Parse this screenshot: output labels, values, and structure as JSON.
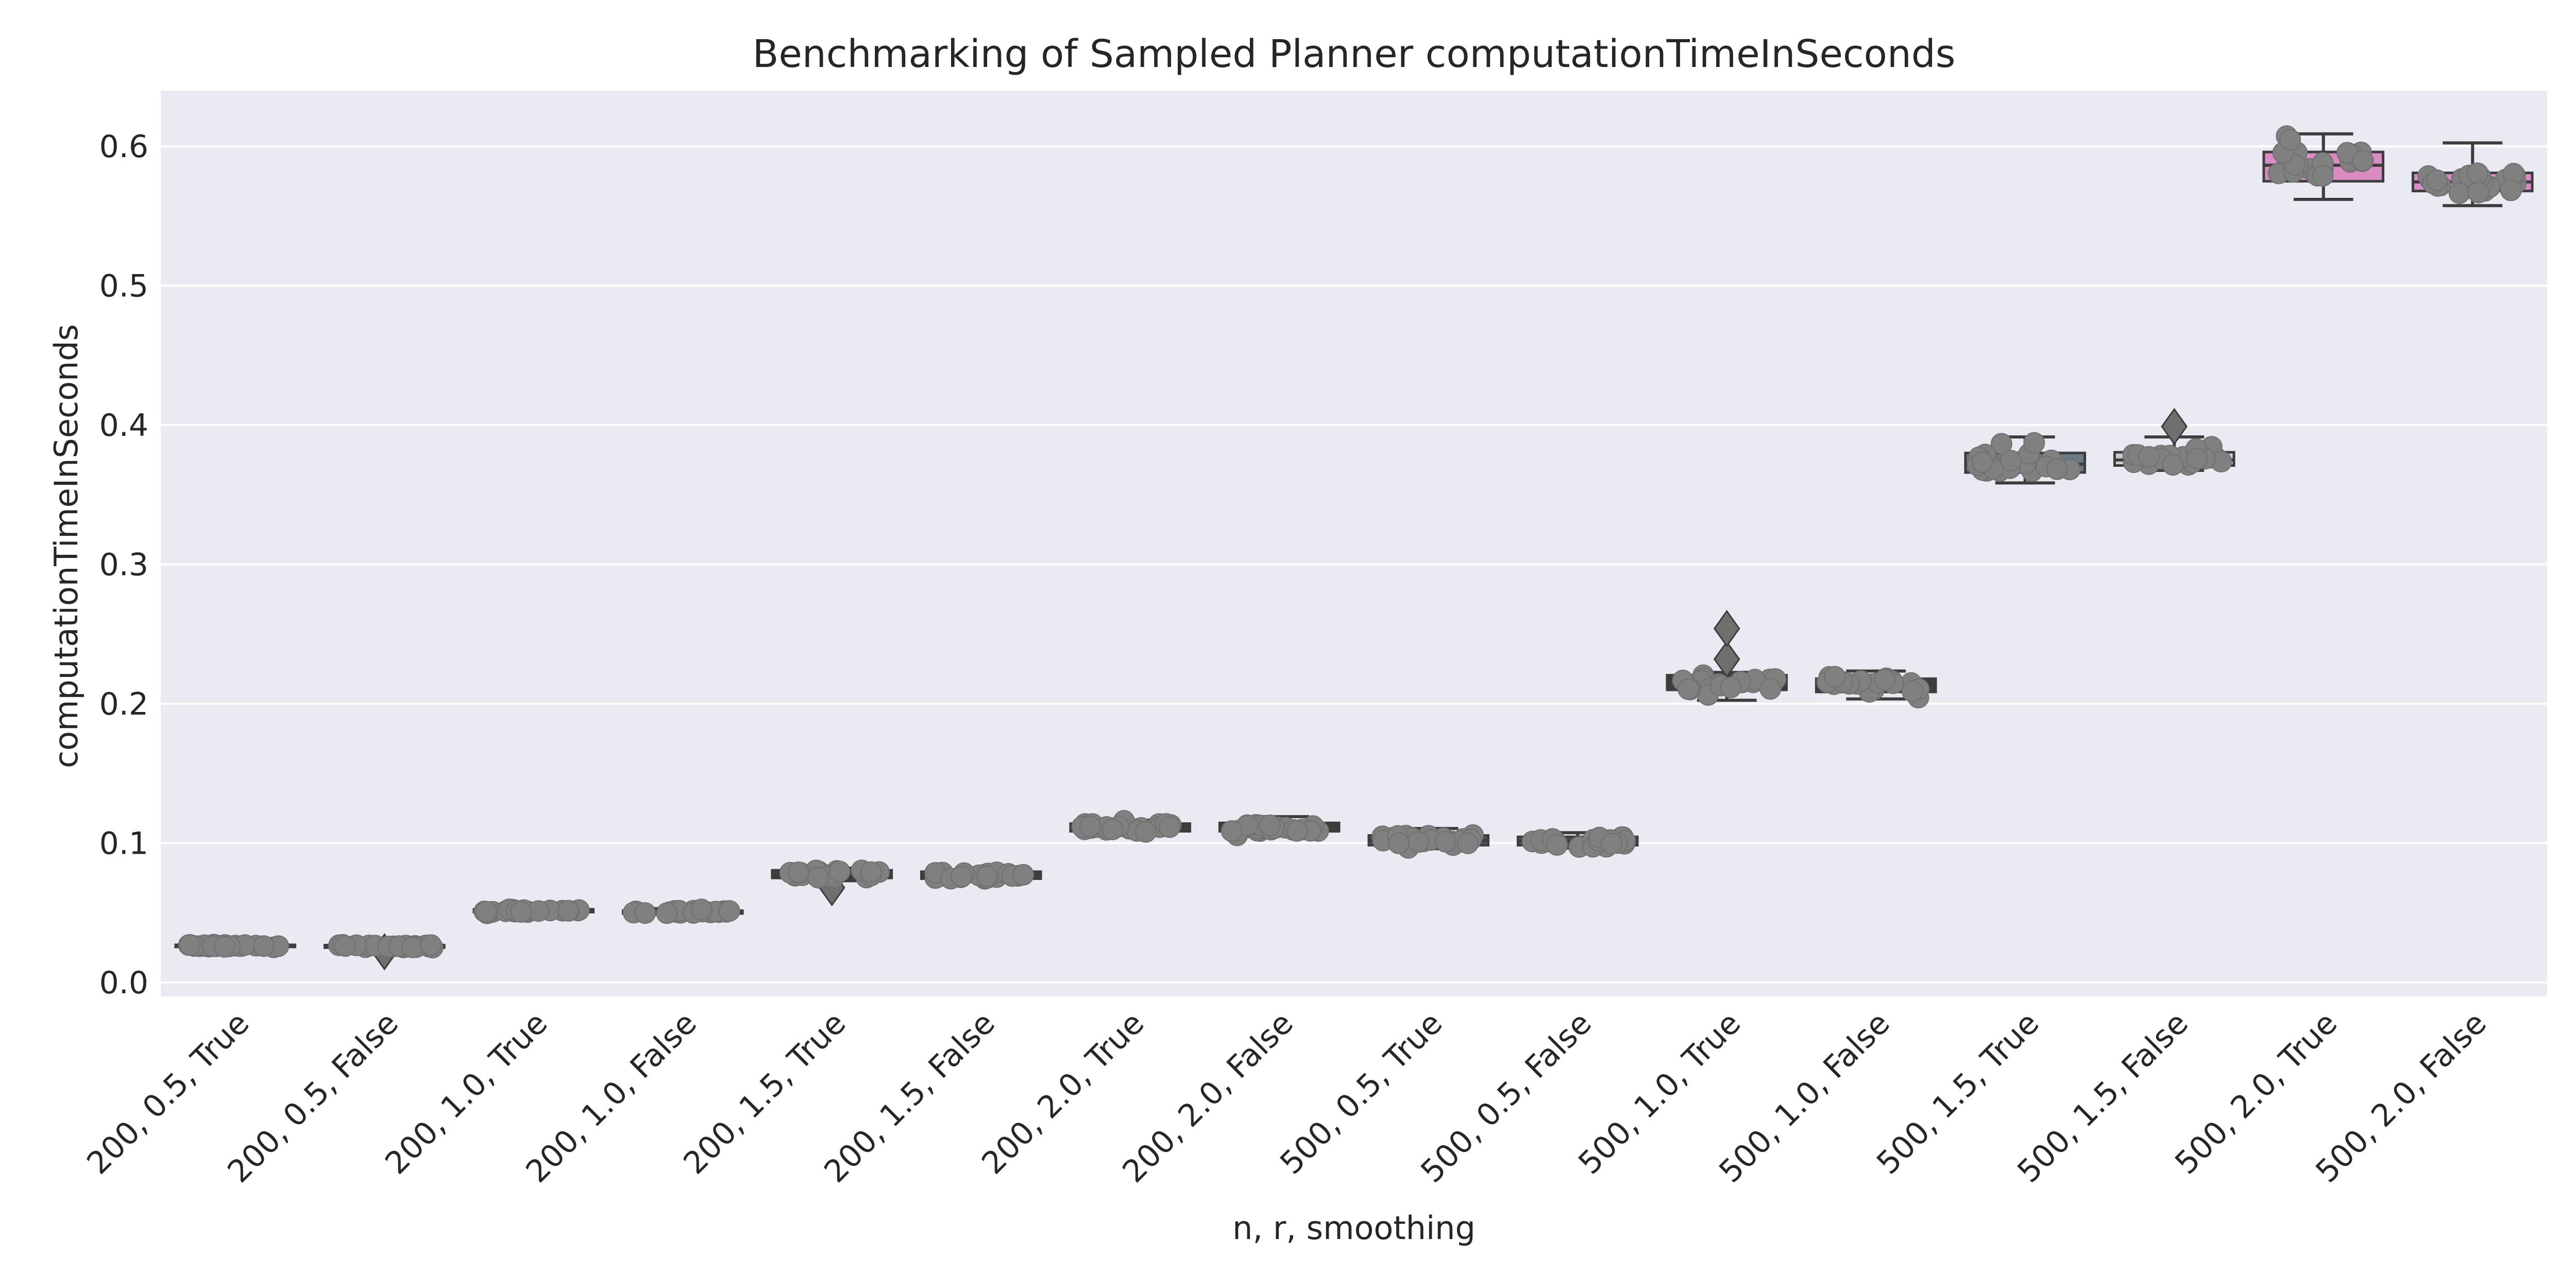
{
  "chart_data": {
    "type": "box",
    "title": "Benchmarking of Sampled Planner computationTimeInSeconds",
    "xlabel": "n, r, smoothing",
    "ylabel": "computationTimeInSeconds",
    "ylim": [
      -0.01,
      0.64
    ],
    "yticks": [
      0.0,
      0.1,
      0.2,
      0.3,
      0.4,
      0.5,
      0.6
    ],
    "ytick_labels": [
      "0.0",
      "0.1",
      "0.2",
      "0.3",
      "0.4",
      "0.5",
      "0.6"
    ],
    "grid": true,
    "categories": [
      "200, 0.5, True",
      "200, 0.5, False",
      "200, 1.0, True",
      "200, 1.0, False",
      "200, 1.5, True",
      "200, 1.5, False",
      "200, 2.0, True",
      "200, 2.0, False",
      "500, 0.5, True",
      "500, 0.5, False",
      "500, 1.0, True",
      "500, 1.0, False",
      "500, 1.5, True",
      "500, 1.5, False",
      "500, 2.0, True",
      "500, 2.0, False"
    ],
    "boxes": [
      {
        "q1": 0.0255,
        "median": 0.0262,
        "q3": 0.027,
        "whisker_low": 0.025,
        "whisker_high": 0.028,
        "outliers": []
      },
      {
        "q1": 0.025,
        "median": 0.026,
        "q3": 0.0268,
        "whisker_low": 0.0245,
        "whisker_high": 0.0275,
        "outliers": [
          0.022
        ]
      },
      {
        "q1": 0.0505,
        "median": 0.0515,
        "q3": 0.0525,
        "whisker_low": 0.0495,
        "whisker_high": 0.054,
        "outliers": []
      },
      {
        "q1": 0.0495,
        "median": 0.0505,
        "q3": 0.0515,
        "whisker_low": 0.049,
        "whisker_high": 0.053,
        "outliers": []
      },
      {
        "q1": 0.075,
        "median": 0.077,
        "q3": 0.0805,
        "whisker_low": 0.073,
        "whisker_high": 0.082,
        "outliers": [
          0.068
        ]
      },
      {
        "q1": 0.0745,
        "median": 0.0765,
        "q3": 0.0795,
        "whisker_low": 0.0725,
        "whisker_high": 0.081,
        "outliers": []
      },
      {
        "q1": 0.1085,
        "median": 0.111,
        "q3": 0.114,
        "whisker_low": 0.106,
        "whisker_high": 0.1165,
        "outliers": []
      },
      {
        "q1": 0.1085,
        "median": 0.111,
        "q3": 0.1145,
        "whisker_low": 0.1055,
        "whisker_high": 0.119,
        "outliers": []
      },
      {
        "q1": 0.0985,
        "median": 0.102,
        "q3": 0.1055,
        "whisker_low": 0.096,
        "whisker_high": 0.1105,
        "outliers": []
      },
      {
        "q1": 0.0985,
        "median": 0.1015,
        "q3": 0.1045,
        "whisker_low": 0.0965,
        "whisker_high": 0.1075,
        "outliers": []
      },
      {
        "q1": 0.21,
        "median": 0.2135,
        "q3": 0.2205,
        "whisker_low": 0.2025,
        "whisker_high": 0.2225,
        "outliers": [
          0.232,
          0.254
        ]
      },
      {
        "q1": 0.2085,
        "median": 0.2135,
        "q3": 0.218,
        "whisker_low": 0.2035,
        "whisker_high": 0.2235,
        "outliers": []
      },
      {
        "q1": 0.366,
        "median": 0.372,
        "q3": 0.38,
        "whisker_low": 0.3585,
        "whisker_high": 0.3915,
        "outliers": []
      },
      {
        "q1": 0.371,
        "median": 0.375,
        "q3": 0.3805,
        "whisker_low": 0.3675,
        "whisker_high": 0.3915,
        "outliers": [
          0.399
        ]
      },
      {
        "q1": 0.575,
        "median": 0.5865,
        "q3": 0.596,
        "whisker_low": 0.562,
        "whisker_high": 0.609,
        "outliers": []
      },
      {
        "q1": 0.568,
        "median": 0.5745,
        "q3": 0.581,
        "whisker_low": 0.5575,
        "whisker_high": 0.6025,
        "outliers": []
      }
    ],
    "box_colors": [
      "#3d3d3d",
      "#3d3d3d",
      "#3d3d3d",
      "#3d3d3d",
      "#3d3d3d",
      "#3d3d3d",
      "#3d3d3d",
      "#3d3d3d",
      "#4a5560",
      "#4a5560",
      "#3d3d3d",
      "#3d3d3d",
      "#6c7a86",
      "#c9ced3",
      "#da8bc3",
      "#da8bc3"
    ],
    "colors": {
      "plot_background": "#eaeaf2",
      "grid": "#ffffff",
      "point_fill": "#808080",
      "outlier_fill": "#6f6f6f",
      "line": "#3d3d3d",
      "text": "#262626"
    }
  }
}
